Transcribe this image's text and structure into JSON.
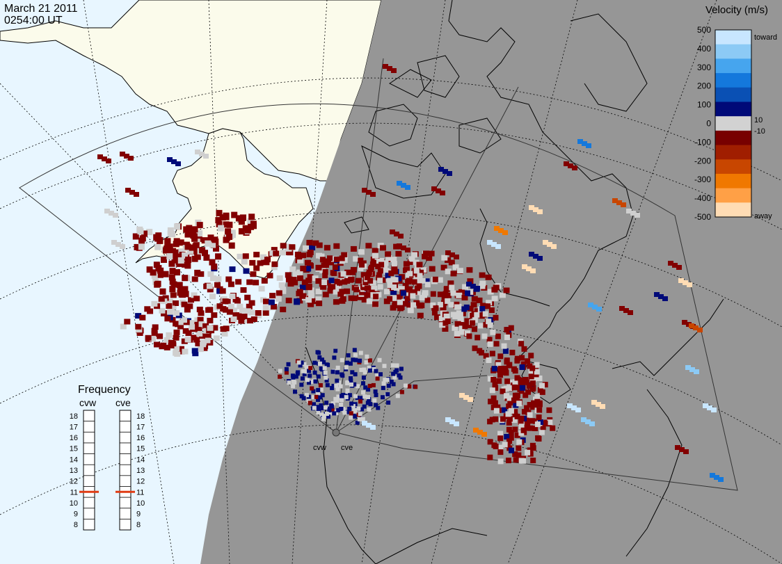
{
  "header": {
    "date": "March 21 2011",
    "time": "0254:00 UT"
  },
  "velocity_scale": {
    "title": "Velocity (m/s)",
    "ticks": [
      "500",
      "400",
      "300",
      "200",
      "100",
      "0",
      "-100",
      "-200",
      "-300",
      "-400",
      "-500"
    ],
    "side_labels": {
      "toward": "toward",
      "ten": "10",
      "minus_ten": "-10",
      "away": "away"
    },
    "colors": [
      "#c8e6ff",
      "#8ccaf5",
      "#46a5ee",
      "#1478dc",
      "#0a50b4",
      "#000a78",
      "#d2d2d2",
      "#780000",
      "#a01e00",
      "#c84600",
      "#f07800",
      "#ffa046",
      "#ffdcb4"
    ]
  },
  "frequency": {
    "title": "Frequency",
    "radars": [
      {
        "label": "cvw",
        "value": 11
      },
      {
        "label": "cve",
        "value": 11
      }
    ],
    "ticks": [
      "18",
      "17",
      "16",
      "15",
      "14",
      "13",
      "12",
      "11",
      "10",
      "9",
      "8"
    ],
    "indicator_color": "#e03c14"
  },
  "radar_sites": [
    {
      "label": "cvw"
    },
    {
      "label": "cve"
    }
  ],
  "colors": {
    "ocean_day": "#e8f6ff",
    "land_day": "#fbfbeb",
    "night": "#969696",
    "scatter_ground": "#cfcfcf",
    "scatter_dark_red": "#820000"
  }
}
